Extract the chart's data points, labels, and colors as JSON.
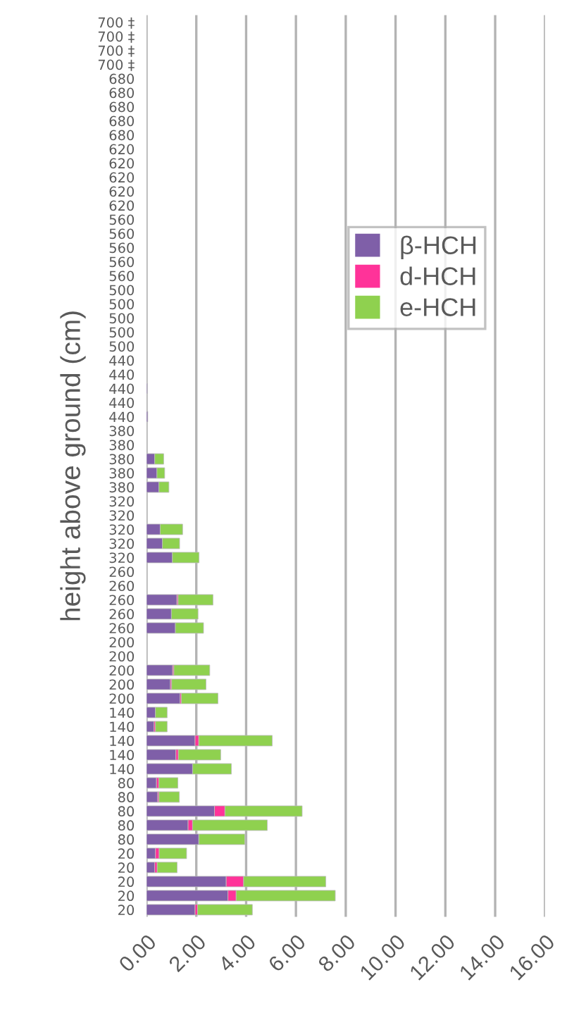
{
  "chart_data": {
    "type": "bar",
    "orientation": "horizontal",
    "stacked": true,
    "ylabel": "height above ground (cm)",
    "categories": [
      "700 ‡",
      "700 ‡",
      "700 ‡",
      "700 ‡",
      "680",
      "680",
      "680",
      "680",
      "680",
      "620",
      "620",
      "620",
      "620",
      "620",
      "560",
      "560",
      "560",
      "560",
      "560",
      "500",
      "500",
      "500",
      "500",
      "500",
      "440",
      "440",
      "440",
      "440",
      "440",
      "380",
      "380",
      "380",
      "380",
      "380",
      "320",
      "320",
      "320",
      "320",
      "320",
      "260",
      "260",
      "260",
      "260",
      "260",
      "200",
      "200",
      "200",
      "200",
      "200",
      "140",
      "140",
      "140",
      "140",
      "140",
      "80",
      "80",
      "80",
      "80",
      "80",
      "20",
      "20",
      "20",
      "20",
      "20"
    ],
    "series": [
      {
        "name": "β-HCH",
        "color": "#7f5fa8",
        "values": [
          null,
          null,
          null,
          null,
          null,
          null,
          null,
          null,
          null,
          null,
          null,
          null,
          null,
          null,
          null,
          null,
          null,
          null,
          null,
          null,
          null,
          null,
          null,
          null,
          null,
          null,
          0.03,
          null,
          0.05,
          null,
          null,
          0.33,
          0.42,
          0.5,
          null,
          null,
          0.55,
          0.64,
          1.04,
          null,
          null,
          1.22,
          1.0,
          1.16,
          null,
          null,
          1.05,
          0.96,
          1.35,
          0.36,
          0.3,
          1.95,
          1.18,
          1.85,
          0.4,
          0.45,
          2.73,
          1.67,
          2.1,
          0.36,
          0.33,
          3.2,
          3.27,
          1.95
        ]
      },
      {
        "name": "d-HCH",
        "color": "#ff3399",
        "values": [
          null,
          null,
          null,
          null,
          null,
          null,
          null,
          null,
          null,
          null,
          null,
          null,
          null,
          null,
          null,
          null,
          null,
          null,
          null,
          null,
          null,
          null,
          null,
          null,
          null,
          null,
          null,
          null,
          null,
          null,
          null,
          null,
          null,
          null,
          null,
          null,
          null,
          null,
          null,
          null,
          null,
          0.05,
          null,
          null,
          null,
          null,
          0.05,
          0.05,
          0.05,
          null,
          0.06,
          0.15,
          0.1,
          null,
          0.1,
          0.05,
          0.42,
          0.18,
          null,
          0.15,
          0.1,
          0.7,
          0.33,
          0.1
        ]
      },
      {
        "name": "e-HCH",
        "color": "#8fd14f",
        "values": [
          null,
          null,
          null,
          null,
          null,
          null,
          null,
          null,
          null,
          null,
          null,
          null,
          null,
          null,
          null,
          null,
          null,
          null,
          null,
          null,
          null,
          null,
          null,
          null,
          null,
          null,
          null,
          null,
          null,
          null,
          null,
          0.36,
          0.31,
          0.4,
          null,
          null,
          0.9,
          0.69,
          1.07,
          null,
          null,
          1.4,
          1.07,
          1.13,
          null,
          null,
          1.44,
          1.38,
          1.47,
          0.47,
          0.47,
          2.95,
          1.7,
          1.56,
          0.76,
          0.82,
          3.1,
          3.0,
          1.85,
          1.1,
          0.8,
          3.3,
          3.98,
          2.2
        ]
      }
    ],
    "xlim": [
      0,
      16
    ],
    "xticks": [
      {
        "value": 0,
        "label": "0.00"
      },
      {
        "value": 2,
        "label": "2.00"
      },
      {
        "value": 4,
        "label": "4.00"
      },
      {
        "value": 6,
        "label": "6.00"
      },
      {
        "value": 8,
        "label": "8.00"
      },
      {
        "value": 10,
        "label": "10.00"
      },
      {
        "value": 12,
        "label": "12.00"
      },
      {
        "value": 14,
        "label": "14.00"
      },
      {
        "value": 16,
        "label": "16.00"
      }
    ],
    "grid": "x",
    "legend": "top right"
  }
}
